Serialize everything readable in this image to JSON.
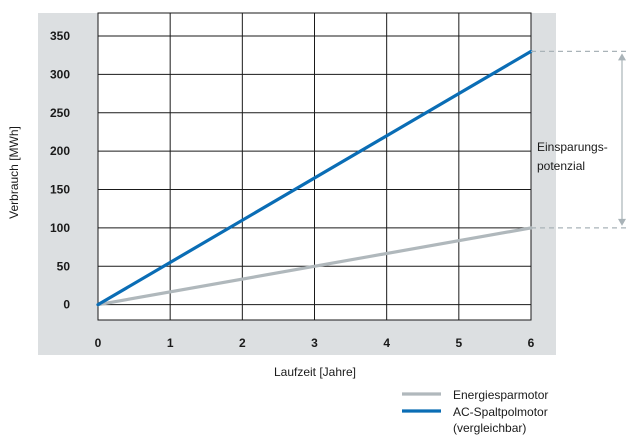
{
  "chart_data": {
    "type": "line",
    "xlabel": "Laufzeit [Jahre]",
    "ylabel": "Verbrauch [MWh]",
    "xlim": [
      0,
      6
    ],
    "ylim": [
      -20,
      380
    ],
    "x_ticks": [
      "0",
      "1",
      "2",
      "3",
      "4",
      "5",
      "6"
    ],
    "y_ticks": [
      "0",
      "50",
      "100",
      "150",
      "200",
      "250",
      "300",
      "350"
    ],
    "grid": true,
    "legend_position": "bottom-right",
    "series": [
      {
        "name": "Energiesparmotor",
        "color": "#b0b8bc",
        "x": [
          0,
          6
        ],
        "y": [
          0,
          100
        ]
      },
      {
        "name": "AC-Spaltpolmotor (vergleichbar)",
        "name_lines": [
          "AC-Spaltpolmotor",
          "(vergleichbar)"
        ],
        "color": "#0a6db5",
        "x": [
          0,
          6
        ],
        "y": [
          0,
          330
        ]
      }
    ],
    "annotation": {
      "lines": [
        "Einsparungs-",
        "potenzial"
      ],
      "from_y": 100,
      "to_y": 330,
      "guide_color": "#a9b3b8"
    },
    "colors": {
      "frame_bg": "#dcdfe1",
      "plot_bg": "#ffffff",
      "grid": "#1a1a1a"
    }
  }
}
